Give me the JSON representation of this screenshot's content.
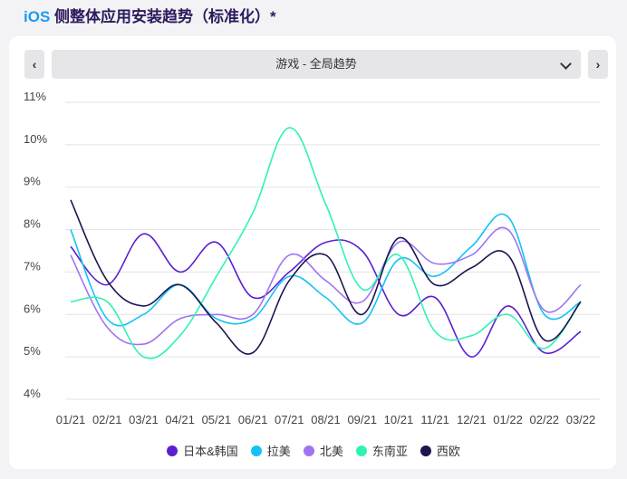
{
  "header": {
    "title_prefix": "iOS",
    "title_rest": " 侧整体应用安装趋势（标准化）*"
  },
  "selector": {
    "value": "游戏 - 全局趋势",
    "prev_icon": "chevron-left-icon",
    "next_icon": "chevron-right-icon",
    "dropdown_icon": "chevron-down-icon"
  },
  "chart_data": {
    "type": "line",
    "x": [
      "01/21",
      "02/21",
      "03/21",
      "04/21",
      "05/21",
      "06/21",
      "07/21",
      "08/21",
      "09/21",
      "10/21",
      "11/21",
      "12/21",
      "01/22",
      "02/22",
      "03/22"
    ],
    "yticks": [
      "4%",
      "5%",
      "6%",
      "7%",
      "8%",
      "9%",
      "10%",
      "11%"
    ],
    "ylim": [
      4,
      11
    ],
    "grid": true,
    "legend_position": "bottom",
    "series": [
      {
        "name": "日本&韩国",
        "color": "#5a1fd1",
        "values": [
          7.6,
          6.7,
          7.9,
          7.0,
          7.7,
          6.4,
          7.0,
          7.7,
          7.5,
          6.0,
          6.4,
          5.0,
          6.2,
          5.1,
          5.6
        ]
      },
      {
        "name": "拉美",
        "color": "#14c2f5",
        "values": [
          8.0,
          5.9,
          6.0,
          6.7,
          5.9,
          5.9,
          6.9,
          6.4,
          5.8,
          7.3,
          6.9,
          7.6,
          8.3,
          6.0,
          6.3
        ]
      },
      {
        "name": "北美",
        "color": "#a074f0",
        "values": [
          7.4,
          5.7,
          5.3,
          5.9,
          6.0,
          6.0,
          7.4,
          6.8,
          6.3,
          7.7,
          7.2,
          7.4,
          8.0,
          6.1,
          6.7
        ]
      },
      {
        "name": "东南亚",
        "color": "#2ff2b5",
        "values": [
          6.3,
          6.3,
          5.0,
          5.5,
          6.9,
          8.4,
          10.4,
          8.6,
          6.6,
          7.4,
          5.6,
          5.5,
          6.0,
          5.2,
          6.3
        ]
      },
      {
        "name": "西欧",
        "color": "#1c1550",
        "values": [
          8.7,
          6.8,
          6.2,
          6.7,
          5.8,
          5.1,
          6.8,
          7.4,
          6.0,
          7.8,
          6.7,
          7.1,
          7.4,
          5.4,
          6.3
        ]
      }
    ]
  }
}
